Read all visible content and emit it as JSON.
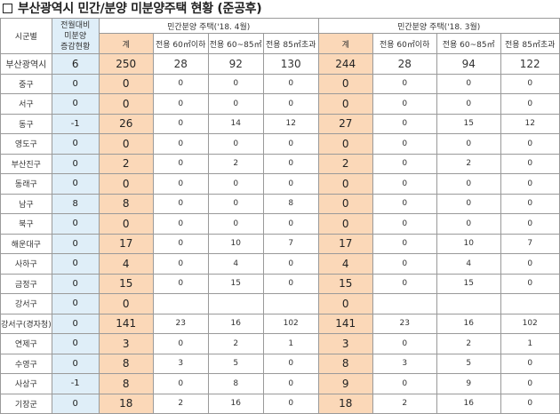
{
  "title": "부산광역시 민간/분양 미분양주택 현황 (준공후)",
  "headers": {
    "sigungu": "시군별",
    "increase": [
      "전월대비",
      "미분양",
      "증감현황"
    ],
    "period_current": "민간분양 주택('18. 4월)",
    "period_prev": "민간분양 주택('18. 3월)",
    "sub": [
      "계",
      "전용 60㎡이하",
      "전용 60~85㎡",
      "전용 85㎡초과"
    ]
  },
  "rows": [
    {
      "name": "부산광역시",
      "inc": "6",
      "c": [
        "250",
        "28",
        "92",
        "130"
      ],
      "p": [
        "244",
        "28",
        "94",
        "122"
      ]
    },
    {
      "name": "중구",
      "inc": "0",
      "c": [
        "0",
        "0",
        "0",
        "0"
      ],
      "p": [
        "0",
        "0",
        "0",
        "0"
      ]
    },
    {
      "name": "서구",
      "inc": "0",
      "c": [
        "0",
        "0",
        "0",
        "0"
      ],
      "p": [
        "0",
        "0",
        "0",
        "0"
      ]
    },
    {
      "name": "동구",
      "inc": "-1",
      "c": [
        "26",
        "0",
        "14",
        "12"
      ],
      "p": [
        "27",
        "0",
        "15",
        "12"
      ]
    },
    {
      "name": "영도구",
      "inc": "0",
      "c": [
        "0",
        "0",
        "0",
        "0"
      ],
      "p": [
        "0",
        "0",
        "0",
        "0"
      ]
    },
    {
      "name": "부산진구",
      "inc": "0",
      "c": [
        "2",
        "0",
        "2",
        "0"
      ],
      "p": [
        "2",
        "0",
        "2",
        "0"
      ]
    },
    {
      "name": "동래구",
      "inc": "0",
      "c": [
        "0",
        "0",
        "0",
        "0"
      ],
      "p": [
        "0",
        "0",
        "0",
        "0"
      ]
    },
    {
      "name": "남구",
      "inc": "8",
      "c": [
        "8",
        "0",
        "0",
        "8"
      ],
      "p": [
        "0",
        "0",
        "0",
        "0"
      ]
    },
    {
      "name": "북구",
      "inc": "0",
      "c": [
        "0",
        "0",
        "0",
        "0"
      ],
      "p": [
        "0",
        "0",
        "0",
        "0"
      ]
    },
    {
      "name": "해운대구",
      "inc": "0",
      "c": [
        "17",
        "0",
        "10",
        "7"
      ],
      "p": [
        "17",
        "0",
        "10",
        "7"
      ]
    },
    {
      "name": "사하구",
      "inc": "0",
      "c": [
        "4",
        "0",
        "4",
        "0"
      ],
      "p": [
        "4",
        "0",
        "4",
        "0"
      ]
    },
    {
      "name": "금정구",
      "inc": "0",
      "c": [
        "15",
        "0",
        "15",
        "0"
      ],
      "p": [
        "15",
        "0",
        "15",
        "0"
      ]
    },
    {
      "name": "강서구",
      "inc": "0",
      "c": [
        "0",
        "",
        "",
        ""
      ],
      "p": [
        "0",
        "",
        "",
        ""
      ]
    },
    {
      "name": "강서구(경자청)",
      "inc": "0",
      "c": [
        "141",
        "23",
        "16",
        "102"
      ],
      "p": [
        "141",
        "23",
        "16",
        "102"
      ]
    },
    {
      "name": "연제구",
      "inc": "0",
      "c": [
        "3",
        "0",
        "2",
        "1"
      ],
      "p": [
        "3",
        "0",
        "2",
        "1"
      ]
    },
    {
      "name": "수영구",
      "inc": "0",
      "c": [
        "8",
        "3",
        "5",
        "0"
      ],
      "p": [
        "8",
        "3",
        "5",
        "0"
      ]
    },
    {
      "name": "사상구",
      "inc": "-1",
      "c": [
        "8",
        "0",
        "8",
        "0"
      ],
      "p": [
        "9",
        "0",
        "9",
        "0"
      ]
    },
    {
      "name": "기장군",
      "inc": "0",
      "c": [
        "18",
        "2",
        "16",
        "0"
      ],
      "p": [
        "18",
        "2",
        "16",
        "0"
      ]
    }
  ]
}
